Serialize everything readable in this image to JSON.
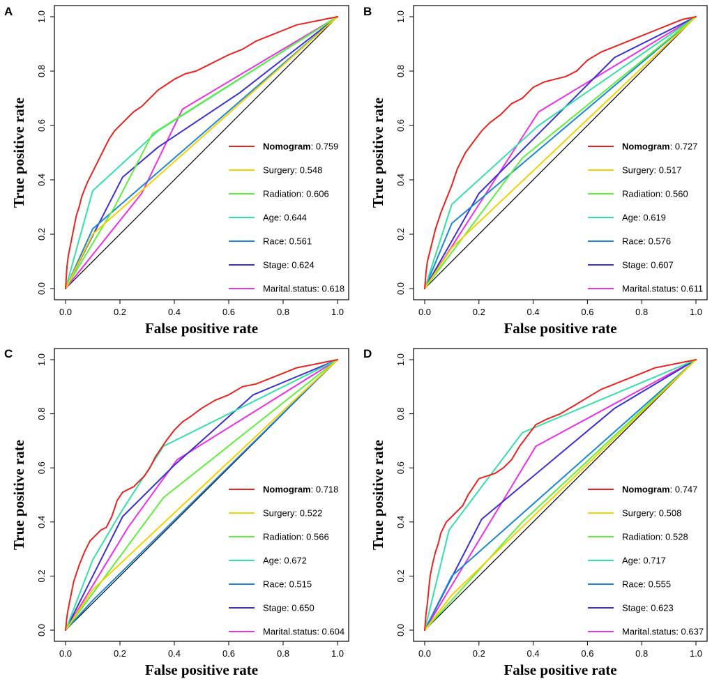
{
  "chart_data": [
    {
      "type": "line",
      "panel": "A",
      "xlabel": "False positive rate",
      "ylabel": "True positive rate",
      "xlim": [
        0,
        1
      ],
      "ylim": [
        0,
        1
      ],
      "xticks": [
        "0.0",
        "0.2",
        "0.4",
        "0.6",
        "0.8",
        "1.0"
      ],
      "yticks": [
        "0.0",
        "0.2",
        "0.4",
        "0.6",
        "0.8",
        "1.0"
      ],
      "legend_position": "bottom-right",
      "series": [
        {
          "name": "Nomogram",
          "auc": "0.759",
          "color": "#e8231e",
          "x": [
            0,
            0.005,
            0.01,
            0.02,
            0.03,
            0.04,
            0.05,
            0.06,
            0.08,
            0.1,
            0.12,
            0.14,
            0.16,
            0.18,
            0.2,
            0.22,
            0.25,
            0.28,
            0.31,
            0.34,
            0.37,
            0.4,
            0.44,
            0.48,
            0.52,
            0.56,
            0.6,
            0.65,
            0.7,
            0.75,
            0.8,
            0.85,
            0.9,
            0.95,
            1
          ],
          "y": [
            0,
            0.08,
            0.12,
            0.17,
            0.22,
            0.27,
            0.3,
            0.34,
            0.39,
            0.43,
            0.47,
            0.51,
            0.55,
            0.58,
            0.6,
            0.62,
            0.65,
            0.67,
            0.7,
            0.73,
            0.75,
            0.77,
            0.79,
            0.8,
            0.82,
            0.84,
            0.86,
            0.88,
            0.91,
            0.93,
            0.95,
            0.97,
            0.98,
            0.99,
            1
          ]
        },
        {
          "name": "Surgery",
          "auc": "0.548",
          "color": "#f5d000",
          "x": [
            0,
            0.1,
            1
          ],
          "y": [
            0,
            0.2,
            1
          ]
        },
        {
          "name": "Radiation",
          "auc": "0.606",
          "color": "#5ef03a",
          "x": [
            0,
            0.18,
            0.32,
            1
          ],
          "y": [
            0,
            0.3,
            0.57,
            1
          ]
        },
        {
          "name": "Age",
          "auc": "0.644",
          "color": "#33e0a8",
          "x": [
            0,
            0.1,
            0.34,
            1
          ],
          "y": [
            0,
            0.36,
            0.58,
            1
          ]
        },
        {
          "name": "Race",
          "auc": "0.561",
          "color": "#1b86d6",
          "x": [
            0,
            0.1,
            1
          ],
          "y": [
            0,
            0.22,
            1
          ]
        },
        {
          "name": "Stage",
          "auc": "0.624",
          "color": "#3a2fd0",
          "x": [
            0,
            0.21,
            0.34,
            0.64,
            1
          ],
          "y": [
            0,
            0.41,
            0.52,
            0.72,
            1
          ]
        },
        {
          "name": "Marital.status",
          "auc": "0.618",
          "color": "#ee2ee8",
          "x": [
            0,
            0.28,
            0.43,
            1
          ],
          "y": [
            0,
            0.35,
            0.66,
            1
          ]
        }
      ]
    },
    {
      "type": "line",
      "panel": "B",
      "xlabel": "False positive rate",
      "ylabel": "True positive rate",
      "xlim": [
        0,
        1
      ],
      "ylim": [
        0,
        1
      ],
      "xticks": [
        "0.0",
        "0.2",
        "0.4",
        "0.6",
        "0.8",
        "1.0"
      ],
      "yticks": [
        "0.0",
        "0.2",
        "0.4",
        "0.6",
        "0.8",
        "1.0"
      ],
      "legend_position": "bottom-right",
      "series": [
        {
          "name": "Nomogram",
          "auc": "0.727",
          "color": "#e8231e",
          "x": [
            0,
            0.005,
            0.01,
            0.02,
            0.03,
            0.04,
            0.05,
            0.06,
            0.08,
            0.1,
            0.12,
            0.15,
            0.18,
            0.21,
            0.24,
            0.28,
            0.32,
            0.36,
            0.4,
            0.44,
            0.48,
            0.52,
            0.56,
            0.6,
            0.65,
            0.7,
            0.75,
            0.8,
            0.85,
            0.9,
            0.95,
            1
          ],
          "y": [
            0,
            0.06,
            0.1,
            0.14,
            0.18,
            0.22,
            0.25,
            0.28,
            0.33,
            0.38,
            0.44,
            0.5,
            0.54,
            0.58,
            0.61,
            0.64,
            0.68,
            0.7,
            0.74,
            0.76,
            0.77,
            0.78,
            0.8,
            0.84,
            0.87,
            0.89,
            0.91,
            0.93,
            0.95,
            0.97,
            0.99,
            1
          ]
        },
        {
          "name": "Surgery",
          "auc": "0.517",
          "color": "#f5d000",
          "x": [
            0,
            0.1,
            1
          ],
          "y": [
            0,
            0.15,
            1
          ]
        },
        {
          "name": "Radiation",
          "auc": "0.560",
          "color": "#5ef03a",
          "x": [
            0,
            0.36,
            1
          ],
          "y": [
            0,
            0.48,
            1
          ]
        },
        {
          "name": "Age",
          "auc": "0.619",
          "color": "#33e0a8",
          "x": [
            0,
            0.1,
            0.42,
            1
          ],
          "y": [
            0,
            0.31,
            0.6,
            1
          ]
        },
        {
          "name": "Race",
          "auc": "0.576",
          "color": "#1b86d6",
          "x": [
            0,
            0.1,
            1
          ],
          "y": [
            0,
            0.24,
            1
          ]
        },
        {
          "name": "Stage",
          "auc": "0.607",
          "color": "#3a2fd0",
          "x": [
            0,
            0.2,
            0.7,
            1
          ],
          "y": [
            0,
            0.35,
            0.85,
            1
          ]
        },
        {
          "name": "Marital.status",
          "auc": "0.611",
          "color": "#ee2ee8",
          "x": [
            0,
            0.42,
            1
          ],
          "y": [
            0,
            0.65,
            1
          ]
        }
      ]
    },
    {
      "type": "line",
      "panel": "C",
      "xlabel": "False positive rate",
      "ylabel": "True positive rate",
      "xlim": [
        0,
        1
      ],
      "ylim": [
        0,
        1
      ],
      "xticks": [
        "0.0",
        "0.2",
        "0.4",
        "0.6",
        "0.8",
        "1.0"
      ],
      "yticks": [
        "0.0",
        "0.2",
        "0.4",
        "0.6",
        "0.8",
        "1.0"
      ],
      "legend_position": "bottom-right",
      "series": [
        {
          "name": "Nomogram",
          "auc": "0.718",
          "color": "#e8231e",
          "x": [
            0,
            0.005,
            0.01,
            0.02,
            0.03,
            0.05,
            0.07,
            0.09,
            0.11,
            0.13,
            0.15,
            0.17,
            0.19,
            0.21,
            0.23,
            0.25,
            0.27,
            0.29,
            0.31,
            0.33,
            0.35,
            0.37,
            0.4,
            0.43,
            0.46,
            0.5,
            0.55,
            0.6,
            0.65,
            0.7,
            0.75,
            0.8,
            0.85,
            0.9,
            0.95,
            1
          ],
          "y": [
            0,
            0.05,
            0.08,
            0.13,
            0.18,
            0.24,
            0.29,
            0.33,
            0.35,
            0.37,
            0.38,
            0.42,
            0.48,
            0.51,
            0.52,
            0.53,
            0.55,
            0.57,
            0.6,
            0.64,
            0.67,
            0.7,
            0.74,
            0.77,
            0.79,
            0.82,
            0.85,
            0.87,
            0.9,
            0.91,
            0.93,
            0.95,
            0.97,
            0.98,
            0.99,
            1
          ]
        },
        {
          "name": "Surgery",
          "auc": "0.522",
          "color": "#f5d000",
          "x": [
            0,
            0.1,
            1
          ],
          "y": [
            0,
            0.15,
            1
          ]
        },
        {
          "name": "Radiation",
          "auc": "0.566",
          "color": "#5ef03a",
          "x": [
            0,
            0.36,
            1
          ],
          "y": [
            0,
            0.49,
            1
          ]
        },
        {
          "name": "Age",
          "auc": "0.672",
          "color": "#33e0a8",
          "x": [
            0,
            0.1,
            0.2,
            0.36,
            1
          ],
          "y": [
            0,
            0.26,
            0.43,
            0.68,
            1
          ]
        },
        {
          "name": "Race",
          "auc": "0.515",
          "color": "#1b86d6",
          "x": [
            0,
            0.1,
            1
          ],
          "y": [
            0,
            0.11,
            1
          ]
        },
        {
          "name": "Stage",
          "auc": "0.650",
          "color": "#3a2fd0",
          "x": [
            0,
            0.21,
            0.4,
            0.69,
            1
          ],
          "y": [
            0,
            0.42,
            0.61,
            0.87,
            1
          ]
        },
        {
          "name": "Marital.status",
          "auc": "0.604",
          "color": "#ee2ee8",
          "x": [
            0,
            0.23,
            0.41,
            1
          ],
          "y": [
            0,
            0.38,
            0.63,
            1
          ]
        }
      ]
    },
    {
      "type": "line",
      "panel": "D",
      "xlabel": "False positive rate",
      "ylabel": "True positive rate",
      "xlim": [
        0,
        1
      ],
      "ylim": [
        0,
        1
      ],
      "xticks": [
        "0.0",
        "0.2",
        "0.4",
        "0.6",
        "0.8",
        "1.0"
      ],
      "yticks": [
        "0.0",
        "0.2",
        "0.4",
        "0.6",
        "0.8",
        "1.0"
      ],
      "legend_position": "bottom-right",
      "series": [
        {
          "name": "Nomogram",
          "auc": "0.747",
          "color": "#e8231e",
          "x": [
            0,
            0.005,
            0.01,
            0.015,
            0.02,
            0.03,
            0.04,
            0.05,
            0.06,
            0.08,
            0.1,
            0.12,
            0.14,
            0.16,
            0.18,
            0.2,
            0.23,
            0.26,
            0.29,
            0.32,
            0.35,
            0.38,
            0.41,
            0.45,
            0.5,
            0.55,
            0.6,
            0.65,
            0.7,
            0.75,
            0.8,
            0.85,
            0.9,
            0.95,
            1
          ],
          "y": [
            0,
            0.06,
            0.1,
            0.15,
            0.2,
            0.25,
            0.29,
            0.32,
            0.36,
            0.4,
            0.42,
            0.44,
            0.46,
            0.5,
            0.53,
            0.56,
            0.57,
            0.58,
            0.6,
            0.63,
            0.68,
            0.72,
            0.76,
            0.78,
            0.8,
            0.83,
            0.86,
            0.89,
            0.91,
            0.93,
            0.95,
            0.97,
            0.98,
            0.99,
            1
          ]
        },
        {
          "name": "Surgery",
          "auc": "0.508",
          "color": "#f5d000",
          "x": [
            0,
            0.1,
            1
          ],
          "y": [
            0,
            0.13,
            1
          ]
        },
        {
          "name": "Radiation",
          "auc": "0.528",
          "color": "#5ef03a",
          "x": [
            0,
            0.36,
            1
          ],
          "y": [
            0,
            0.4,
            1
          ]
        },
        {
          "name": "Age",
          "auc": "0.717",
          "color": "#33e0a8",
          "x": [
            0,
            0.09,
            0.36,
            1
          ],
          "y": [
            0,
            0.37,
            0.73,
            1
          ]
        },
        {
          "name": "Race",
          "auc": "0.555",
          "color": "#1b86d6",
          "x": [
            0,
            0.1,
            1
          ],
          "y": [
            0,
            0.2,
            1
          ]
        },
        {
          "name": "Stage",
          "auc": "0.623",
          "color": "#3a2fd0",
          "x": [
            0,
            0.21,
            0.7,
            1
          ],
          "y": [
            0,
            0.41,
            0.82,
            1
          ]
        },
        {
          "name": "Marital.status",
          "auc": "0.637",
          "color": "#ee2ee8",
          "x": [
            0,
            0.41,
            1
          ],
          "y": [
            0,
            0.68,
            1
          ]
        }
      ]
    }
  ]
}
